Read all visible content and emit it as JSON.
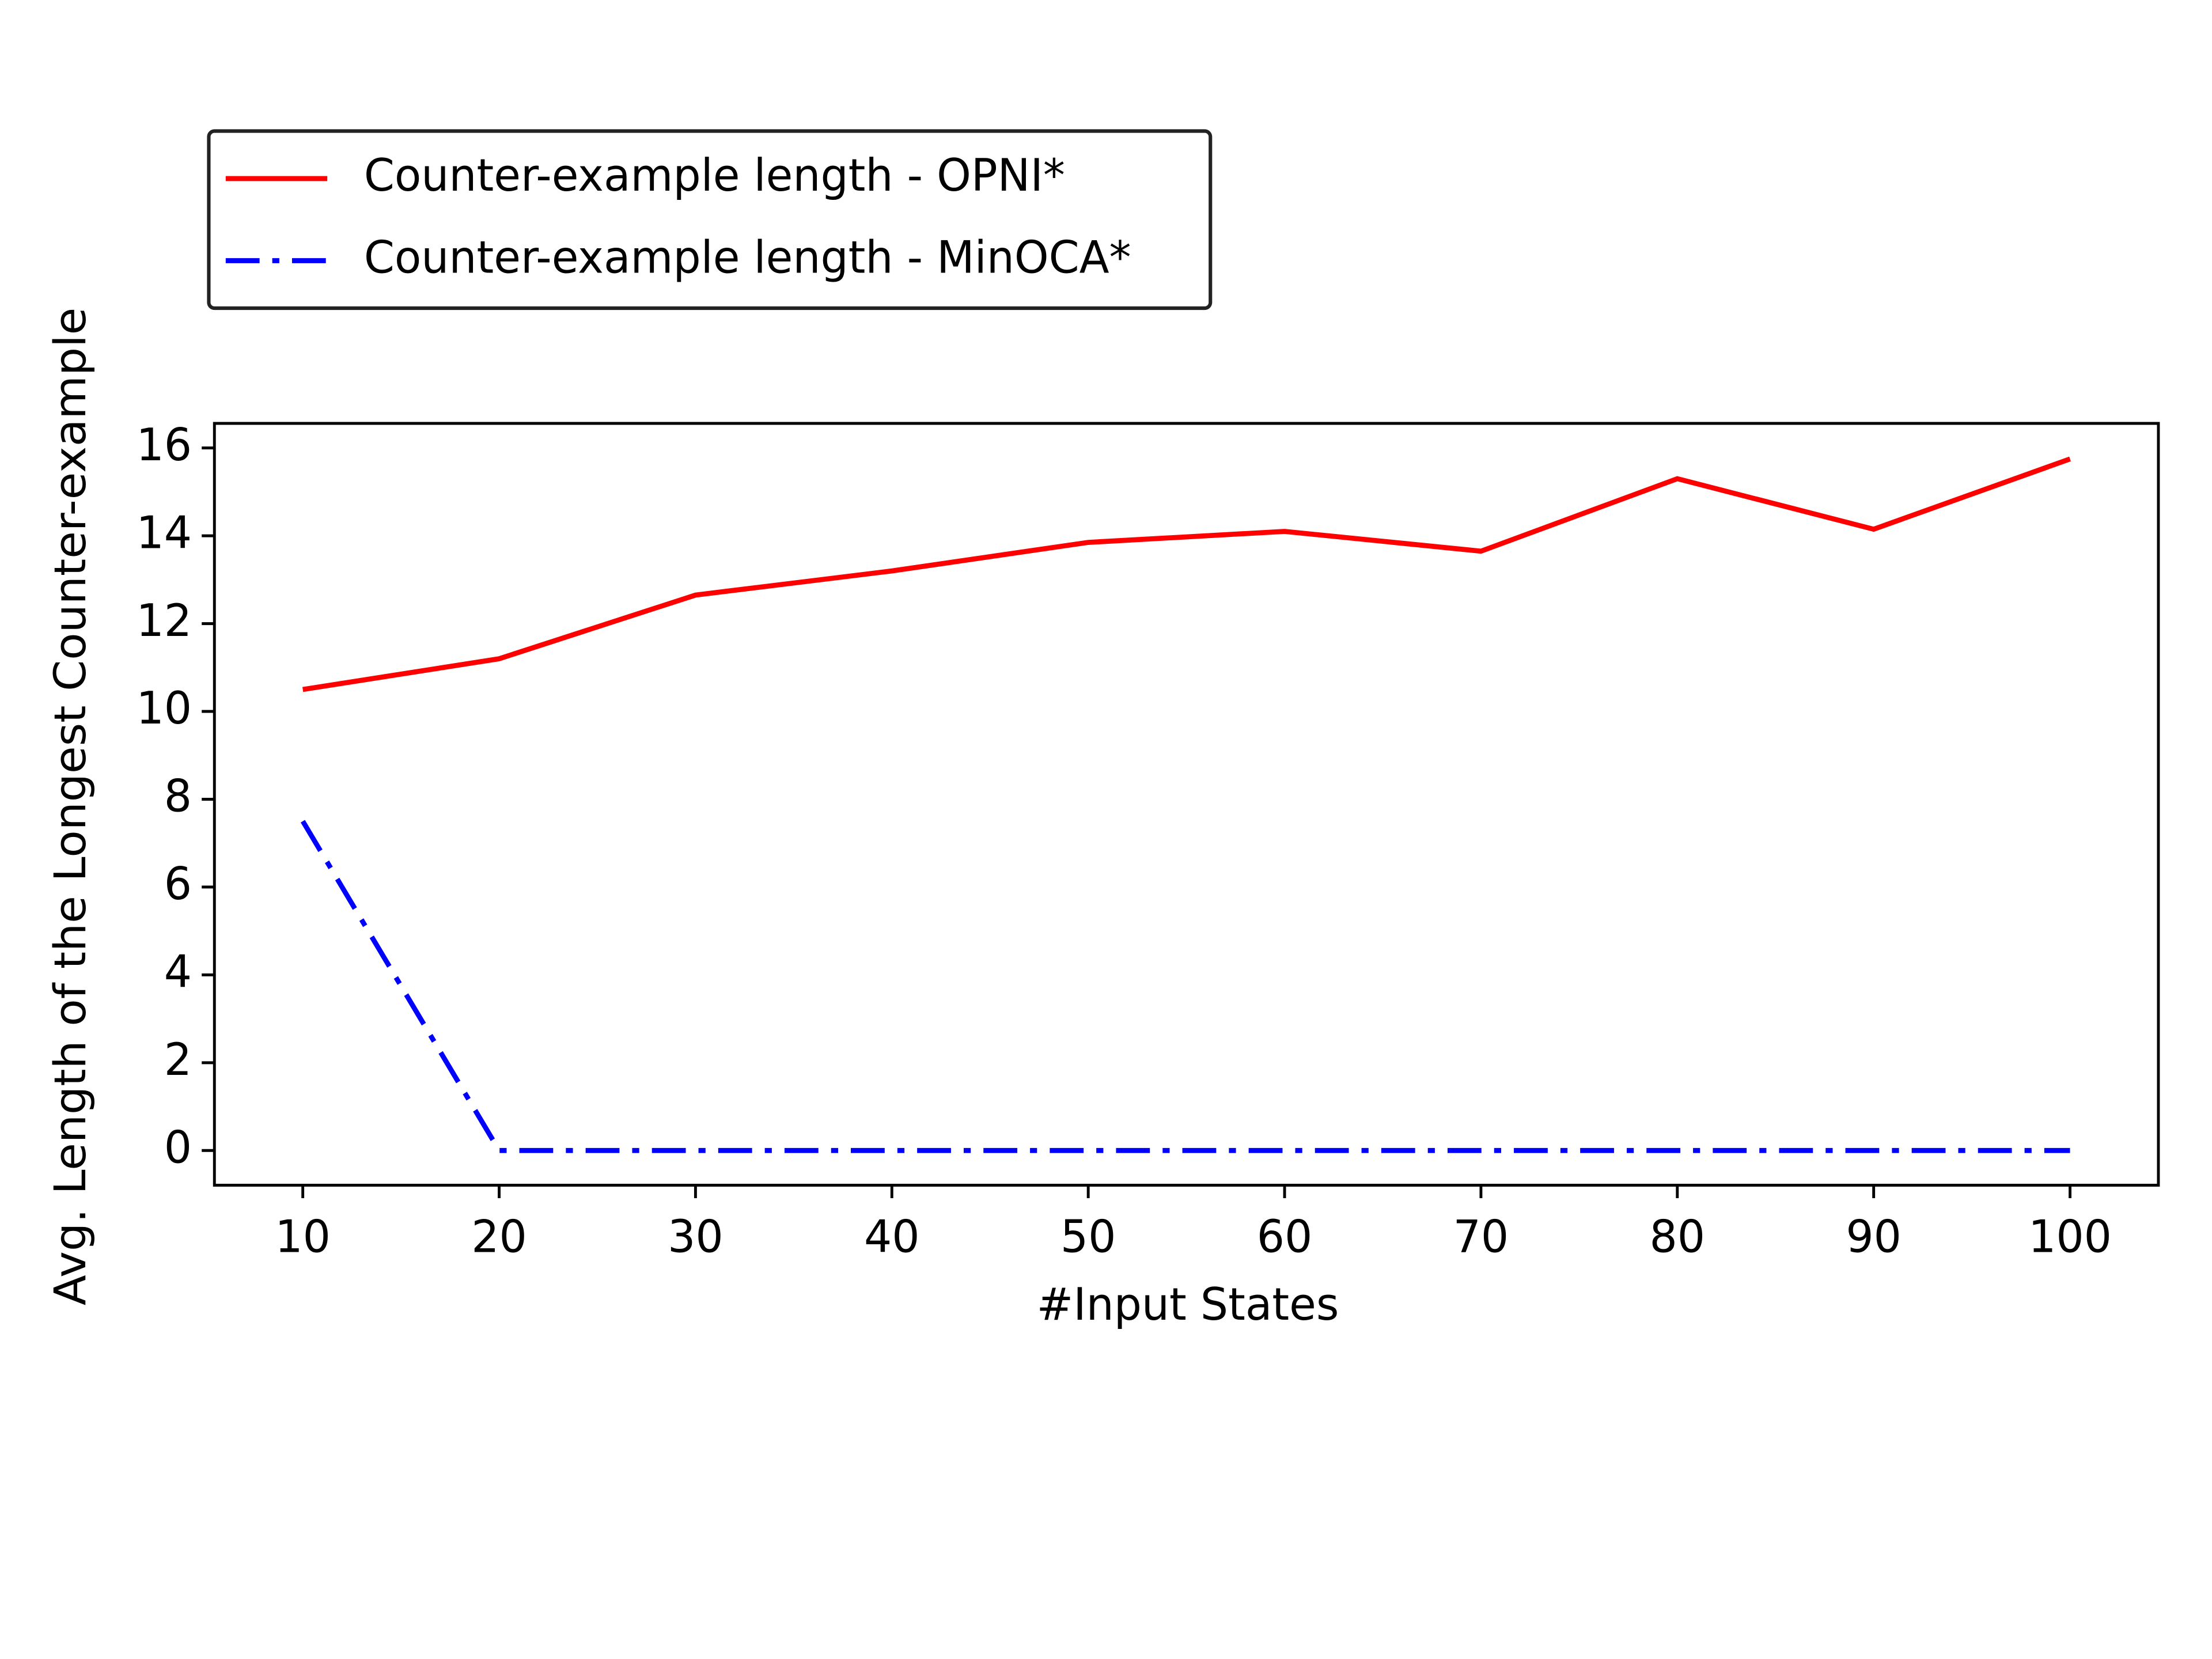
{
  "chart_data": {
    "type": "line",
    "x_label": "#Input States",
    "y_label": "Avg. Length of the Longest Counter-example",
    "x": [
      10,
      20,
      30,
      40,
      50,
      60,
      70,
      80,
      90,
      100
    ],
    "series": [
      {
        "name": "Counter-example length - OPNI*",
        "color": "#ff0000",
        "linestyle": "solid",
        "values": [
          10.5,
          11.2,
          12.65,
          13.2,
          13.85,
          14.1,
          13.65,
          15.3,
          14.15,
          15.75
        ]
      },
      {
        "name": "Counter-example length - MinOCA*",
        "color": "#0000ff",
        "linestyle": "dashdot",
        "values": [
          7.5,
          0,
          0,
          0,
          0,
          0,
          0,
          0,
          0,
          0
        ]
      }
    ],
    "xlim": [
      5.5,
      104.5
    ],
    "ylim": [
      -0.79,
      16.56
    ],
    "xticks": [
      10,
      20,
      30,
      40,
      50,
      60,
      70,
      80,
      90,
      100
    ],
    "yticks": [
      0,
      2,
      4,
      6,
      8,
      10,
      12,
      14,
      16
    ],
    "legend": "upper left outside"
  }
}
